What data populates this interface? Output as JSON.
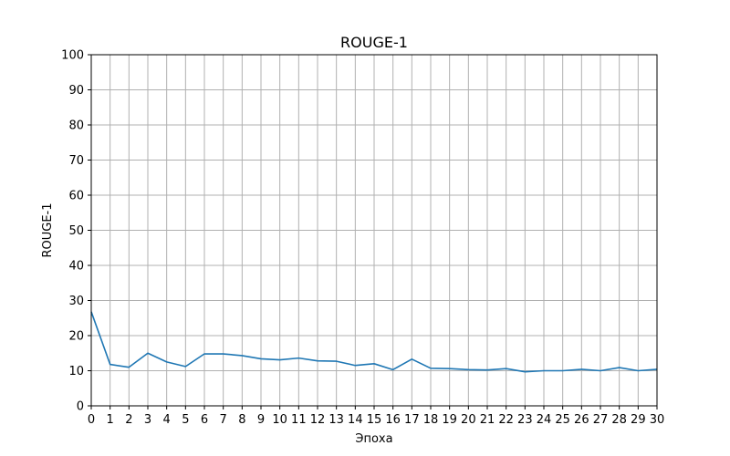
{
  "chart_data": {
    "type": "line",
    "title": "ROUGE-1",
    "xlabel": "Эпоха",
    "ylabel": "ROUGE-1",
    "xlim": [
      0,
      30
    ],
    "ylim": [
      0,
      100
    ],
    "xticks": [
      0,
      1,
      2,
      3,
      4,
      5,
      6,
      7,
      8,
      9,
      10,
      11,
      12,
      13,
      14,
      15,
      16,
      17,
      18,
      19,
      20,
      21,
      22,
      23,
      24,
      25,
      26,
      27,
      28,
      29,
      30
    ],
    "yticks": [
      0,
      10,
      20,
      30,
      40,
      50,
      60,
      70,
      80,
      90,
      100
    ],
    "grid": true,
    "legend": "none",
    "series": [
      {
        "color": "#1f77b4",
        "x": [
          0,
          1,
          2,
          3,
          4,
          5,
          6,
          7,
          8,
          9,
          10,
          11,
          12,
          13,
          14,
          15,
          16,
          17,
          18,
          19,
          20,
          21,
          22,
          23,
          24,
          25,
          26,
          27,
          28,
          29,
          30
        ],
        "y": [
          26.8,
          11.8,
          11.0,
          15.0,
          12.5,
          11.2,
          14.8,
          14.8,
          14.3,
          13.4,
          13.1,
          13.6,
          12.8,
          12.7,
          11.5,
          12.0,
          10.3,
          13.3,
          10.7,
          10.6,
          10.3,
          10.2,
          10.6,
          9.7,
          10.0,
          10.0,
          10.4,
          10.0,
          10.9,
          10.0,
          10.4
        ]
      }
    ]
  }
}
